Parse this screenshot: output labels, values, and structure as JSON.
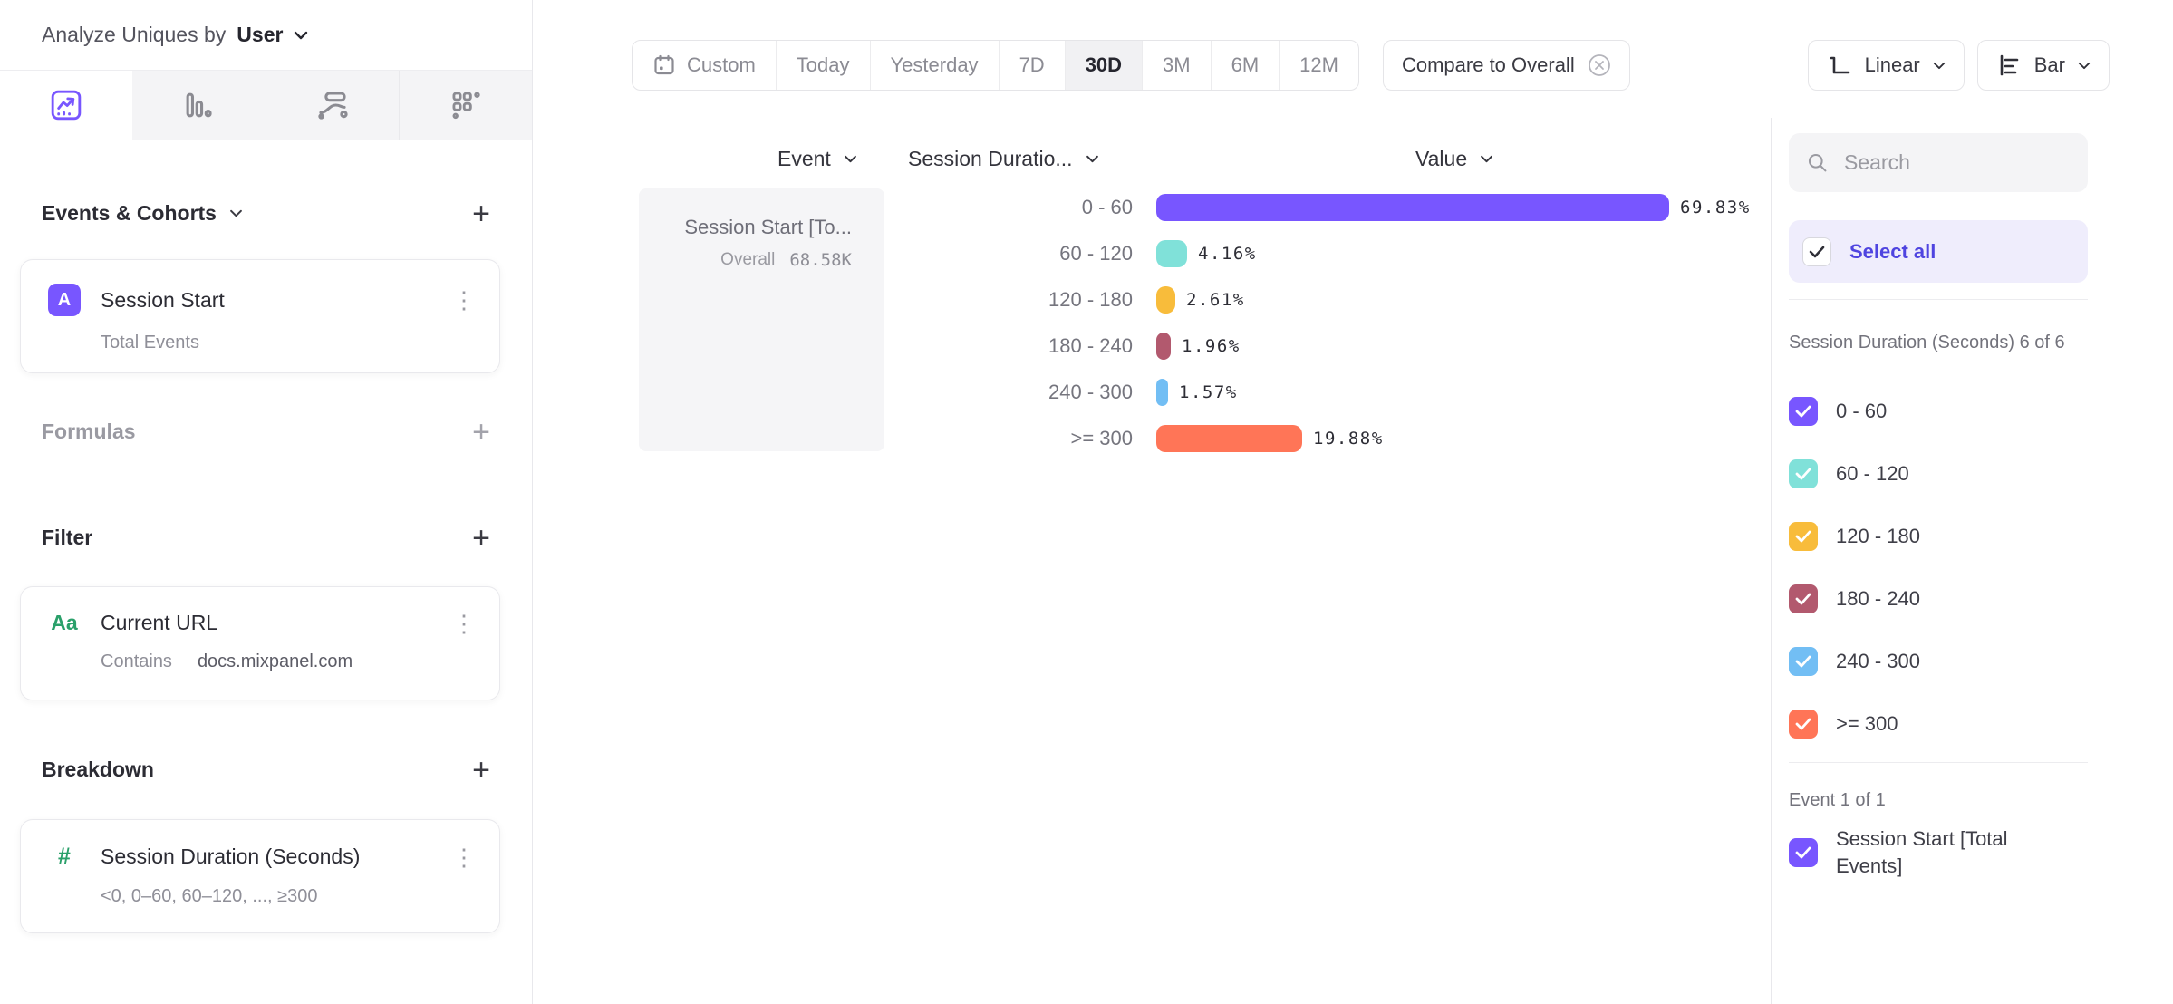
{
  "header": {
    "title": "Analyze Uniques by",
    "selector_value": "User"
  },
  "sidebar": {
    "events_section": {
      "title": "Events & Cohorts",
      "card": {
        "badge": "A",
        "title": "Session Start",
        "subtitle": "Total Events"
      }
    },
    "formulas_section": {
      "title": "Formulas"
    },
    "filter_section": {
      "title": "Filter",
      "card": {
        "badge": "Aa",
        "title": "Current URL",
        "operator": "Contains",
        "value": "docs.mixpanel.com"
      }
    },
    "breakdown_section": {
      "title": "Breakdown",
      "card": {
        "badge": "#",
        "title": "Session Duration (Seconds)",
        "subtitle": "<0, 0–60, 60–120, ..., ≥300"
      }
    }
  },
  "toolbar": {
    "date_ranges": [
      "Custom",
      "Today",
      "Yesterday",
      "7D",
      "30D",
      "3M",
      "6M",
      "12M"
    ],
    "active_range": "30D",
    "compare_label": "Compare to Overall",
    "scale_label": "Linear",
    "chart_type_label": "Bar"
  },
  "chart_data": {
    "type": "bar",
    "orientation": "horizontal",
    "columns": {
      "event": "Event",
      "breakdown": "Session Duratio...",
      "value": "Value"
    },
    "event": {
      "name": "Session Start [To...",
      "overall_label": "Overall",
      "overall_value": "68.58K"
    },
    "categories": [
      "0 - 60",
      "60 - 120",
      "120 - 180",
      "180 - 240",
      "240 - 300",
      ">= 300"
    ],
    "values": [
      69.83,
      4.16,
      2.61,
      1.96,
      1.57,
      19.88
    ],
    "value_labels": [
      "69.83%",
      "4.16%",
      "2.61%",
      "1.96%",
      "1.57%",
      "19.88%"
    ],
    "colors": [
      "#7856FF",
      "#80E1D9",
      "#F8BC3B",
      "#B2596E",
      "#72BEF4",
      "#FF7557"
    ],
    "xlim": [
      0,
      70
    ],
    "grid": false,
    "legend_position": "right-panel-checkboxes"
  },
  "right_panel": {
    "search_placeholder": "Search",
    "select_all_label": "Select all",
    "breakdown_group": {
      "label": "Session Duration (Seconds) 6 of 6",
      "items": [
        {
          "label": "0 - 60",
          "color": "#7856FF",
          "checked": true
        },
        {
          "label": "60 - 120",
          "color": "#80E1D9",
          "checked": true
        },
        {
          "label": "120 - 180",
          "color": "#F8BC3B",
          "checked": true
        },
        {
          "label": "180 - 240",
          "color": "#B2596E",
          "checked": true
        },
        {
          "label": "240 - 300",
          "color": "#72BEF4",
          "checked": true
        },
        {
          "label": ">= 300",
          "color": "#FF7557",
          "checked": true
        }
      ]
    },
    "event_group": {
      "label": "Event 1 of 1",
      "items": [
        {
          "label": "Session Start [Total Events]",
          "color": "#7856FF",
          "checked": true
        }
      ]
    }
  },
  "ui_colors": {
    "accent_purple": "#7856FF",
    "link_purple": "#4f44e0",
    "green": "#2aa06a"
  }
}
